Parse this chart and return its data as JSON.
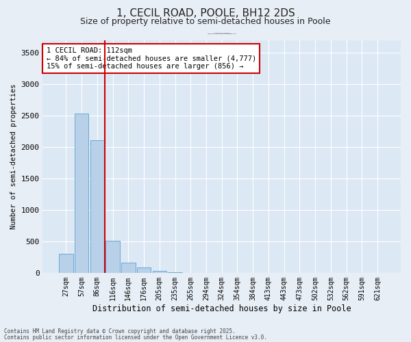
{
  "title": "1, CECIL ROAD, POOLE, BH12 2DS",
  "subtitle": "Size of property relative to semi-detached houses in Poole",
  "xlabel": "Distribution of semi-detached houses by size in Poole",
  "ylabel": "Number of semi-detached properties",
  "categories": [
    "27sqm",
    "57sqm",
    "86sqm",
    "116sqm",
    "146sqm",
    "176sqm",
    "205sqm",
    "235sqm",
    "265sqm",
    "294sqm",
    "324sqm",
    "354sqm",
    "384sqm",
    "413sqm",
    "443sqm",
    "473sqm",
    "502sqm",
    "532sqm",
    "562sqm",
    "591sqm",
    "621sqm"
  ],
  "values": [
    300,
    2530,
    2110,
    510,
    165,
    80,
    30,
    5,
    0,
    0,
    0,
    0,
    0,
    0,
    0,
    0,
    0,
    0,
    0,
    0,
    0
  ],
  "bar_color": "#b8d0e8",
  "bar_edge_color": "#6aaad4",
  "vline_x": 2.5,
  "vline_color": "#cc0000",
  "annotation_text": "1 CECIL ROAD: 112sqm\n← 84% of semi-detached houses are smaller (4,777)\n15% of semi-detached houses are larger (856) →",
  "annotation_box_color": "#ffffff",
  "annotation_box_edge": "#cc0000",
  "ylim": [
    0,
    3700
  ],
  "yticks": [
    0,
    500,
    1000,
    1500,
    2000,
    2500,
    3000,
    3500
  ],
  "background_color": "#e8eef5",
  "plot_bg_color": "#dde8f5",
  "footer_line1": "Contains HM Land Registry data © Crown copyright and database right 2025.",
  "footer_line2": "Contains public sector information licensed under the Open Government Licence v3.0."
}
